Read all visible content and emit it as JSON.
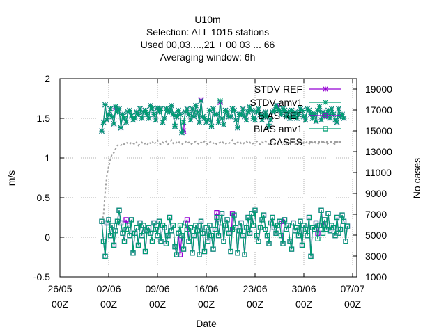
{
  "chart_data": {
    "type": "line",
    "title_lines": [
      "U10m",
      "Selection: ALL   1015 stations",
      "Used  00,03,...,21  + 00 03 ... 66",
      "Averaging window:  6h"
    ],
    "xlabel": "Date",
    "ylabel": "m/s",
    "y2label": "No cases",
    "ylim": [
      -0.5,
      2
    ],
    "y2lim": [
      1000,
      20000
    ],
    "y_ticks": [
      "-0.5",
      "0",
      "0.5",
      "1",
      "1.5",
      "2"
    ],
    "y2_ticks": [
      "1000",
      "3000",
      "5000",
      "7000",
      "9000",
      "11000",
      "13000",
      "15000",
      "17000",
      "19000"
    ],
    "x_ticks": [
      {
        "date": "26/05",
        "hour": "00Z"
      },
      {
        "date": "02/06",
        "hour": "00Z"
      },
      {
        "date": "09/06",
        "hour": "00Z"
      },
      {
        "date": "16/06",
        "hour": "00Z"
      },
      {
        "date": "23/06",
        "hour": "00Z"
      },
      {
        "date": "30/06",
        "hour": "00Z"
      },
      {
        "date": "07/07",
        "hour": "00Z"
      }
    ],
    "grid": true,
    "legend_position": "top-right",
    "legend": [
      {
        "name": "STDV REF",
        "color": "#9400d3",
        "marker": "star"
      },
      {
        "name": "STDV amv1",
        "color": "#009e73",
        "marker": "star"
      },
      {
        "name": "BIAS REF",
        "color": "#9400d3",
        "marker": "square"
      },
      {
        "name": "BIAS amv1",
        "color": "#009e73",
        "marker": "square"
      },
      {
        "name": "CASES",
        "color": "#a0a0a0",
        "marker": "dashed"
      }
    ],
    "series": [
      {
        "name": "STDV amv1",
        "x_start": "01/06 00Z",
        "step_hours": 6,
        "values": [
          1.34,
          1.45,
          1.67,
          1.48,
          1.55,
          1.62,
          1.52,
          1.43,
          1.65,
          1.58,
          1.62,
          1.38,
          1.55,
          1.5,
          1.45,
          1.58,
          1.6,
          1.53,
          1.48,
          1.5,
          1.58,
          1.55,
          1.62,
          1.5,
          1.58,
          1.6,
          1.55,
          1.5,
          1.66,
          1.62,
          1.55,
          1.48,
          1.63,
          1.58,
          1.62,
          1.45,
          1.5,
          1.62,
          1.6,
          1.58,
          1.66,
          1.55,
          1.4,
          1.52,
          1.6,
          1.55,
          1.32,
          1.45,
          1.58,
          1.62,
          1.55,
          1.48,
          1.62,
          1.52,
          1.66,
          1.58,
          1.45,
          1.72,
          1.52,
          1.5,
          1.45,
          1.48,
          1.6,
          1.4,
          1.62,
          1.55,
          1.55,
          1.45,
          1.72,
          1.5,
          1.42,
          1.6,
          1.58,
          1.52,
          1.52,
          1.62,
          1.6,
          1.48,
          1.38,
          1.55,
          1.55,
          1.62,
          1.52,
          1.48,
          1.58,
          1.64,
          1.6,
          1.5,
          1.48,
          1.58,
          1.62,
          1.55,
          1.48,
          1.52,
          1.58,
          1.52,
          1.4,
          1.48,
          1.58,
          1.6,
          1.66,
          1.62,
          1.6,
          1.55,
          1.62,
          1.6,
          1.52,
          1.58,
          1.5,
          1.6,
          1.52,
          1.58,
          1.5,
          1.55,
          1.62,
          1.6,
          1.52,
          1.48,
          1.62,
          1.6,
          1.55,
          1.5,
          1.56,
          1.46,
          1.6,
          1.65,
          1.48,
          1.58,
          1.52,
          1.55,
          1.6,
          1.5,
          1.62,
          1.55,
          1.48,
          1.45,
          1.62,
          1.52,
          1.55,
          1.5
        ]
      },
      {
        "name": "BIAS amv1",
        "x_start": "01/06 00Z",
        "step_hours": 6,
        "values": [
          0.2,
          -0.05,
          -0.24,
          0.18,
          0.22,
          0.02,
          0.15,
          -0.1,
          0.08,
          0.2,
          0.34,
          0.18,
          0.05,
          -0.05,
          0.1,
          0.15,
          0.02,
          0.22,
          -0.2,
          0.05,
          0.12,
          -0.1,
          0.18,
          0.02,
          0.15,
          -0.18,
          0.08,
          0.12,
          0.05,
          -0.05,
          0.18,
          0.1,
          0.02,
          0.2,
          -0.05,
          0.15,
          0.12,
          -0.08,
          0.02,
          0.25,
          0.08,
          0.15,
          -0.12,
          -0.22,
          0.05,
          0.15,
          0.02,
          -0.15,
          0.18,
          0.1,
          -0.05,
          0.12,
          -0.2,
          0.02,
          0.15,
          0.08,
          -0.22,
          0.2,
          0.05,
          -0.18,
          0.12,
          -0.05,
          0.15,
          0.02,
          -0.15,
          0.1,
          0.25,
          0.02,
          0.18,
          0.3,
          -0.05,
          0.15,
          0.22,
          0.05,
          -0.18,
          0.1,
          0.28,
          0.12,
          -0.2,
          0.08,
          0.18,
          0.02,
          -0.22,
          0.12,
          0.25,
          0.05,
          0.3,
          0.15,
          0.34,
          0.02,
          -0.05,
          0.12,
          0.22,
          0.28,
          0.1,
          0.02,
          -0.08,
          0.18,
          0.25,
          0.12,
          0.05,
          0.15,
          0.2,
          0.02,
          -0.08,
          0.22,
          0.1,
          0.15,
          -0.05,
          -0.15,
          0.18,
          0.08,
          0.12,
          0.02,
          0.2,
          -0.1,
          0.15,
          0.1,
          0.02,
          0.25,
          -0.24,
          0.12,
          0.1,
          0.18,
          -0.02,
          0.15,
          0.34,
          0.05,
          0.22,
          0.1,
          0.3,
          0.08,
          0.15,
          0.12,
          0.02,
          0.25,
          0.05,
          0.1,
          0.28,
          0.2,
          -0.05,
          0.14
        ]
      },
      {
        "name": "CASES",
        "x_start": "01/06 00Z",
        "step_hours": 6,
        "values": [
          6200,
          6900,
          9200,
          10800,
          11600,
          12300,
          12800,
          12900,
          13300,
          13600,
          13700,
          13600,
          13800,
          13700,
          13900,
          13800,
          13700,
          13900,
          13800,
          13700,
          13900,
          13600,
          13800,
          13900,
          13700,
          13800,
          13600,
          13900,
          13800,
          14000,
          13700,
          13900,
          14100,
          13800,
          13700,
          13900,
          13800,
          14000,
          13700,
          13900,
          14100,
          13800,
          13700,
          13900,
          14000,
          13800,
          13700,
          13900,
          14000,
          13800,
          13900,
          13700,
          13800,
          13900,
          14000,
          13800,
          13700,
          13900,
          13800,
          14000,
          13800,
          13700,
          13900,
          14000,
          13800,
          13900,
          13700,
          13800,
          13900,
          14000,
          13800,
          13700,
          13900,
          13800,
          13900,
          14100,
          13800,
          13700,
          13900,
          14000,
          13800,
          13700,
          13900,
          14000,
          13800,
          13900,
          13700,
          13800,
          13900,
          14000,
          13800,
          13700,
          13900,
          13800,
          14000,
          13800,
          13700,
          13900,
          14000,
          13800,
          13900,
          13700,
          13800,
          13900,
          13800,
          14000,
          13700,
          13900,
          13800,
          14000,
          13800,
          13700,
          13900,
          13800,
          14000,
          13700,
          13900,
          13800,
          14000,
          13800,
          13700,
          13900,
          14000,
          13800,
          13700,
          13900,
          14000,
          13800,
          13900,
          13700,
          13800,
          13900,
          14000,
          13800,
          13700,
          13900,
          14000
        ]
      }
    ],
    "ref_overrides": [
      {
        "name": "STDV REF",
        "indices": [
          2,
          8,
          47,
          57,
          68,
          101
        ],
        "values": [
          1.67,
          1.63,
          1.34,
          1.73,
          1.7,
          1.65
        ]
      },
      {
        "name": "BIAS REF",
        "indices": [
          14,
          45,
          49,
          66,
          75,
          103,
          124,
          127
        ],
        "values": [
          0.22,
          -0.22,
          0.22,
          0.31,
          0.3,
          0.2,
          0.05,
          0.15
        ]
      }
    ]
  },
  "colors": {
    "ref": "#9400d3",
    "amv1": "#009e73",
    "cases": "#a0a0a0",
    "grid": "#b0b0b0",
    "axis": "#000000"
  }
}
